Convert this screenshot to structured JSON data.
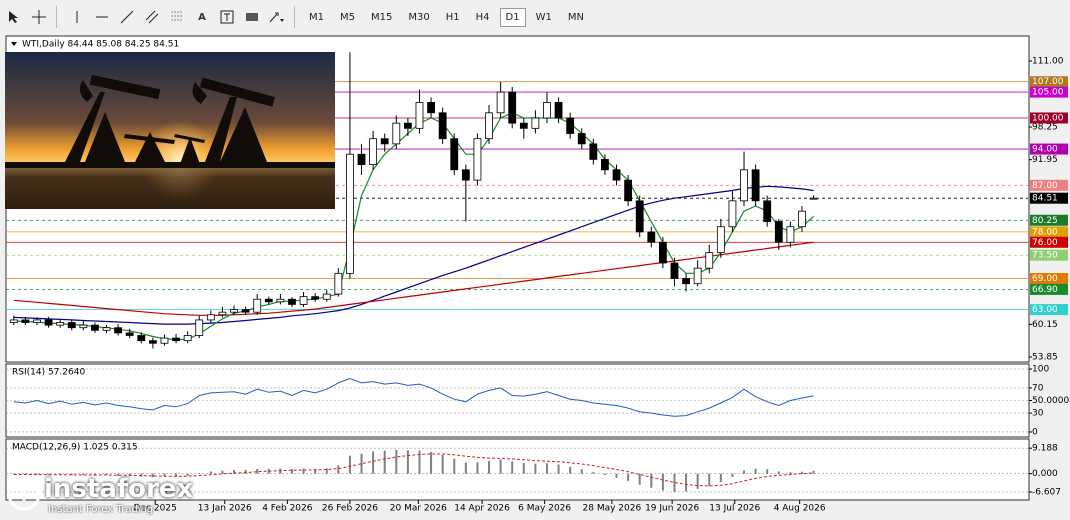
{
  "toolbar": {
    "text_tool": "A",
    "timeframes": [
      "M1",
      "M5",
      "M15",
      "M30",
      "H1",
      "H4",
      "D1",
      "W1",
      "MN"
    ],
    "selected_index": 6
  },
  "watermark": {
    "brand": "instaforex",
    "tagline": "Instant Forex Trading"
  },
  "chart_data": [
    {
      "type": "candlestick",
      "title": "WTI,Daily 84.44 85.08 84.25 84.51",
      "xlim": [
        -0.5,
        87.5
      ],
      "ylim": [
        52.88,
        115.83
      ],
      "yticks": [
        {
          "value": 111,
          "label": "111.00"
        },
        98.25,
        91.95,
        60.15,
        53.85
      ],
      "xticks": [
        {
          "value": 12.2,
          "label": "Dec 2025"
        },
        {
          "value": 18.2,
          "label": "13 Jan 2026"
        },
        {
          "value": 23.6,
          "label": "4 Feb 2026"
        },
        {
          "value": 29,
          "label": "26 Feb 2026"
        },
        {
          "value": 34.9,
          "label": "20 Mar 2026"
        },
        {
          "value": 40.4,
          "label": "14 Apr 2026"
        },
        {
          "value": 45.8,
          "label": "6 May 2026"
        },
        {
          "value": 51.6,
          "label": "28 May 2026"
        },
        {
          "value": 56.8,
          "label": "19 Jun 2026"
        },
        {
          "value": 62.2,
          "label": "13 Jul 2026"
        },
        {
          "value": 67.8,
          "label": "4 Aug 2026"
        }
      ],
      "levels": [
        {
          "value": 107,
          "label": "107.00",
          "color": "#b07a1a"
        },
        {
          "value": 105,
          "label": "105.00",
          "color": "#cc00cc"
        },
        {
          "value": 100,
          "label": "100.00",
          "color": "#a0002a"
        },
        {
          "value": 94,
          "label": "94.00",
          "color": "#b000b0"
        },
        {
          "value": 87,
          "label": "87.00",
          "color": "#f08080",
          "style": "dashed"
        },
        {
          "value": 84.51,
          "label": "84.51",
          "color": "#000000",
          "style": "dashed"
        },
        {
          "value": 80.25,
          "label": "80.25",
          "color": "#1a7a2a",
          "style": "dashed"
        },
        {
          "value": 78,
          "label": "78.00",
          "color": "#e0a000"
        },
        {
          "value": 76,
          "label": "76.00",
          "color": "#d00000"
        },
        {
          "value": 73.5,
          "label": "73.50",
          "color": "#8fcf6f",
          "style": "dashed"
        },
        {
          "value": 69,
          "label": "69.00",
          "color": "#e07a00"
        },
        {
          "value": 66.9,
          "label": "66.90",
          "color": "#1a8a2a",
          "style": "dashed"
        },
        {
          "value": 63,
          "label": "63.00",
          "color": "#30d0d0"
        }
      ],
      "open": [
        60.5,
        61,
        60.5,
        61,
        60,
        60.5,
        59.5,
        60,
        59,
        59.5,
        58.5,
        58,
        57,
        56.5,
        57.5,
        57,
        58,
        61,
        62,
        62.5,
        63,
        62.5,
        65,
        64.5,
        65,
        64,
        65.5,
        65,
        66,
        70,
        93,
        91,
        96,
        95,
        99,
        98,
        103,
        101,
        96,
        90,
        88,
        96,
        101,
        105,
        99,
        98,
        100,
        103,
        100,
        97,
        95,
        92,
        90,
        88,
        84,
        78,
        76,
        72,
        69,
        68,
        71,
        74,
        79,
        84,
        90,
        84,
        80,
        76,
        79,
        84.44
      ],
      "high": [
        61.8,
        61.6,
        61.5,
        61.6,
        61,
        61,
        60.8,
        60.5,
        60,
        60.2,
        59.3,
        58.6,
        57.6,
        58.2,
        58.3,
        58.8,
        61.8,
        62.8,
        63.5,
        63.8,
        63.6,
        66,
        65.5,
        66,
        65.4,
        66.4,
        66.2,
        66.8,
        71,
        112.7,
        95,
        97.5,
        97,
        100.5,
        100,
        105.5,
        104,
        102,
        97,
        91,
        97,
        102.5,
        107,
        106,
        100,
        101.5,
        105,
        104,
        101,
        98,
        96,
        93,
        91,
        89,
        85,
        79,
        77,
        73,
        70,
        72.5,
        75.5,
        80.5,
        86,
        93.5,
        91,
        85,
        80.5,
        80,
        83,
        85.08
      ],
      "low": [
        60,
        60,
        60,
        59.5,
        59.5,
        59,
        59,
        58.5,
        58.5,
        58,
        57.5,
        56.5,
        55.5,
        56,
        56.5,
        56.5,
        57.5,
        60.5,
        61.5,
        62,
        62,
        62,
        64,
        64,
        63.5,
        63.5,
        64.5,
        64.5,
        65.5,
        69,
        89,
        90,
        93.5,
        94,
        96.5,
        97,
        100,
        95,
        89,
        80,
        87,
        95,
        100,
        98,
        96,
        97,
        99,
        99,
        96,
        94,
        91,
        89,
        87,
        83,
        77,
        75,
        71,
        67.5,
        66.5,
        67.5,
        70,
        73,
        78,
        83,
        83,
        79,
        74.5,
        75,
        78,
        84.25
      ],
      "close": [
        61,
        60.5,
        61,
        60,
        60.5,
        59.5,
        60,
        59,
        59.5,
        58.5,
        58,
        57,
        56.5,
        57.5,
        57,
        58,
        61,
        62,
        62.5,
        63,
        62.5,
        65,
        64.5,
        65,
        64,
        65.5,
        65,
        66,
        70,
        93,
        91,
        96,
        95,
        99,
        98,
        103,
        101,
        96,
        90,
        88,
        96,
        101,
        105,
        99,
        98,
        100,
        103,
        100,
        97,
        95,
        92,
        90,
        88,
        84,
        78,
        76,
        72,
        69,
        68,
        71,
        74,
        79,
        84,
        90,
        84,
        80,
        76,
        79,
        82,
        84.51
      ],
      "lines": [
        {
          "color": "#00008b",
          "values": [
            61.5,
            61.4,
            61.3,
            61.2,
            61.1,
            61,
            60.9,
            60.8,
            60.7,
            60.6,
            60.5,
            60.4,
            60.3,
            60.2,
            60.2,
            60.2,
            60.3,
            60.4,
            60.5,
            60.7,
            60.9,
            61.1,
            61.3,
            61.5,
            61.8,
            62,
            62.2,
            62.5,
            62.8,
            63.3,
            64,
            64.8,
            65.6,
            66.4,
            67.2,
            68,
            68.8,
            69.6,
            70.3,
            71,
            71.8,
            72.6,
            73.4,
            74.2,
            75,
            75.8,
            76.6,
            77.4,
            78.2,
            79,
            79.8,
            80.6,
            81.4,
            82.2,
            83,
            83.6,
            84.1,
            84.5,
            84.8,
            85.1,
            85.4,
            85.7,
            86,
            86.4,
            86.6,
            86.8,
            86.7,
            86.5,
            86.3,
            86
          ]
        },
        {
          "color": "#c00000",
          "values": [
            64.8,
            64.6,
            64.4,
            64.2,
            64,
            63.8,
            63.6,
            63.4,
            63.2,
            63,
            62.8,
            62.6,
            62.4,
            62.2,
            62.1,
            62,
            61.9,
            61.9,
            61.9,
            62,
            62.1,
            62.2,
            62.3,
            62.5,
            62.7,
            62.9,
            63.1,
            63.4,
            63.7,
            64,
            64.3,
            64.6,
            64.9,
            65.2,
            65.5,
            65.8,
            66.1,
            66.4,
            66.7,
            67,
            67.3,
            67.6,
            67.9,
            68.2,
            68.5,
            68.8,
            69.1,
            69.4,
            69.7,
            70,
            70.3,
            70.6,
            70.9,
            71.2,
            71.5,
            71.8,
            72.1,
            72.4,
            72.7,
            73,
            73.3,
            73.6,
            73.9,
            74.2,
            74.5,
            74.8,
            75.1,
            75.4,
            75.7,
            76
          ]
        },
        {
          "color": "#118a2a",
          "values": [
            60.8,
            60.7,
            60.6,
            60.4,
            60.3,
            60.1,
            60,
            59.7,
            59.5,
            59.2,
            58.9,
            58.4,
            57.8,
            57.4,
            57.2,
            57.3,
            58.3,
            59.8,
            61.2,
            62.3,
            62.7,
            63.5,
            64,
            64.6,
            64.6,
            64.9,
            65,
            65.5,
            66,
            75,
            85,
            90,
            93,
            95,
            97,
            99,
            100,
            99,
            96,
            93,
            93,
            96,
            100,
            101,
            100,
            100,
            100,
            100,
            99,
            97,
            95,
            92,
            90,
            88,
            84,
            80,
            76,
            72,
            70,
            70,
            71,
            74,
            78,
            82,
            83,
            82,
            79,
            78,
            79,
            81
          ]
        }
      ]
    },
    {
      "type": "line",
      "title": "RSI(14) 57.2640",
      "xlim": [
        -0.5,
        87.5
      ],
      "ylim": [
        -8,
        108
      ],
      "yticks": [
        100,
        70,
        {
          "value": 50,
          "label": "50.0000"
        },
        30,
        0
      ],
      "color": "#1f5fbf",
      "values": [
        48,
        46,
        50,
        45,
        49,
        44,
        47,
        43,
        46,
        42,
        40,
        37,
        35,
        42,
        40,
        45,
        58,
        62,
        63,
        64,
        60,
        68,
        63,
        65,
        58,
        66,
        62,
        68,
        78,
        85,
        78,
        80,
        76,
        78,
        74,
        76,
        70,
        60,
        52,
        48,
        60,
        66,
        70,
        58,
        57,
        60,
        64,
        58,
        52,
        50,
        46,
        44,
        42,
        38,
        32,
        30,
        27,
        25,
        26,
        32,
        38,
        46,
        55,
        68,
        56,
        48,
        42,
        50,
        54,
        57.264
      ]
    },
    {
      "type": "macd",
      "title": "MACD(12,26,9) 1.025 0.315",
      "xlim": [
        -0.5,
        87.5
      ],
      "ylim": [
        -9.5,
        12.5
      ],
      "yticks": [
        9.188,
        {
          "value": 0,
          "label": "0.000"
        },
        -6.607
      ],
      "color": "#808080",
      "signal_color": "#d02020",
      "values": [
        -0.3,
        -0.4,
        -0.3,
        -0.5,
        -0.4,
        -0.6,
        -0.5,
        -0.7,
        -0.6,
        -0.8,
        -0.9,
        -1.1,
        -1.3,
        -1,
        -1.1,
        -0.8,
        0.2,
        0.8,
        1.1,
        1.3,
        1.3,
        1.7,
        1.7,
        1.8,
        1.6,
        1.8,
        1.7,
        1.9,
        3,
        6.5,
        7.2,
        8,
        8.3,
        8.6,
        8.4,
        8.3,
        7.8,
        6.8,
        5.4,
        4,
        4.1,
        4.6,
        5.1,
        4.4,
        3.9,
        3.6,
        3.7,
        3.3,
        2.5,
        1.6,
        0.6,
        -0.5,
        -1.5,
        -2.6,
        -4,
        -5.1,
        -6.1,
        -6.6,
        -6.4,
        -5.5,
        -4.5,
        -3,
        -1.2,
        1.2,
        1.8,
        1.6,
        0.8,
        0.5,
        0.7,
        1.025
      ],
      "signal": [
        -0.3,
        -0.3,
        -0.3,
        -0.4,
        -0.4,
        -0.4,
        -0.5,
        -0.5,
        -0.5,
        -0.6,
        -0.6,
        -0.7,
        -0.8,
        -0.9,
        -0.9,
        -0.9,
        -0.7,
        -0.4,
        -0.1,
        0.2,
        0.4,
        0.7,
        0.9,
        1.1,
        1.2,
        1.3,
        1.4,
        1.5,
        1.8,
        2.7,
        3.6,
        4.5,
        5.3,
        6,
        6.5,
        6.9,
        7.1,
        7.1,
        6.8,
        6.3,
        5.9,
        5.6,
        5.5,
        5.3,
        5,
        4.7,
        4.5,
        4.3,
        3.9,
        3.5,
        2.9,
        2.2,
        1.5,
        0.7,
        -0.3,
        -1.3,
        -2.3,
        -3.2,
        -3.9,
        -4.3,
        -4.4,
        -4.2,
        -3.6,
        -2.6,
        -1.7,
        -1,
        -0.6,
        -0.3,
        0,
        0.315
      ]
    }
  ]
}
